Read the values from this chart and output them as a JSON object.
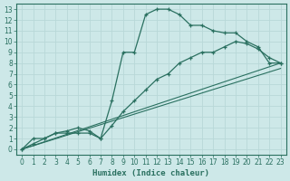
{
  "xlabel": "Humidex (Indice chaleur)",
  "bg_color": "#cde8e8",
  "grid_color": "#b8d8d8",
  "line_color": "#2a7060",
  "xlim": [
    -0.5,
    23.5
  ],
  "ylim": [
    -0.5,
    13.5
  ],
  "xticks": [
    0,
    1,
    2,
    3,
    4,
    5,
    6,
    7,
    8,
    9,
    10,
    11,
    12,
    13,
    14,
    15,
    16,
    17,
    18,
    19,
    20,
    21,
    22,
    23
  ],
  "yticks": [
    0,
    1,
    2,
    3,
    4,
    5,
    6,
    7,
    8,
    9,
    10,
    11,
    12,
    13
  ],
  "curve1_x": [
    0,
    1,
    2,
    3,
    4,
    5,
    6,
    7,
    8,
    9,
    10,
    11,
    12,
    13,
    14,
    15,
    16,
    17,
    18,
    19,
    20,
    21,
    22,
    23
  ],
  "curve1_y": [
    0,
    1,
    1,
    1.5,
    1.5,
    1.5,
    1.5,
    1,
    4.5,
    9,
    9,
    12.5,
    13,
    13,
    12.5,
    11.5,
    11.5,
    11,
    10.8,
    10.8,
    10,
    9.5,
    8,
    8
  ],
  "curve2_x": [
    0,
    1,
    2,
    3,
    4,
    5,
    6,
    7,
    8,
    9,
    10,
    11,
    12,
    13,
    14,
    15,
    16,
    17,
    18,
    19,
    20,
    21,
    22,
    23
  ],
  "curve2_y": [
    0,
    0.5,
    1.0,
    1.5,
    1.7,
    2.0,
    1.7,
    1.0,
    2.2,
    3.5,
    4.5,
    5.5,
    6.5,
    7.0,
    8.0,
    8.5,
    9.0,
    9.0,
    9.5,
    10.0,
    9.8,
    9.3,
    8.5,
    8.0
  ],
  "line1_x": [
    0,
    23
  ],
  "line1_y": [
    0,
    8.0
  ],
  "line2_x": [
    0,
    23
  ],
  "line2_y": [
    0,
    7.5
  ]
}
